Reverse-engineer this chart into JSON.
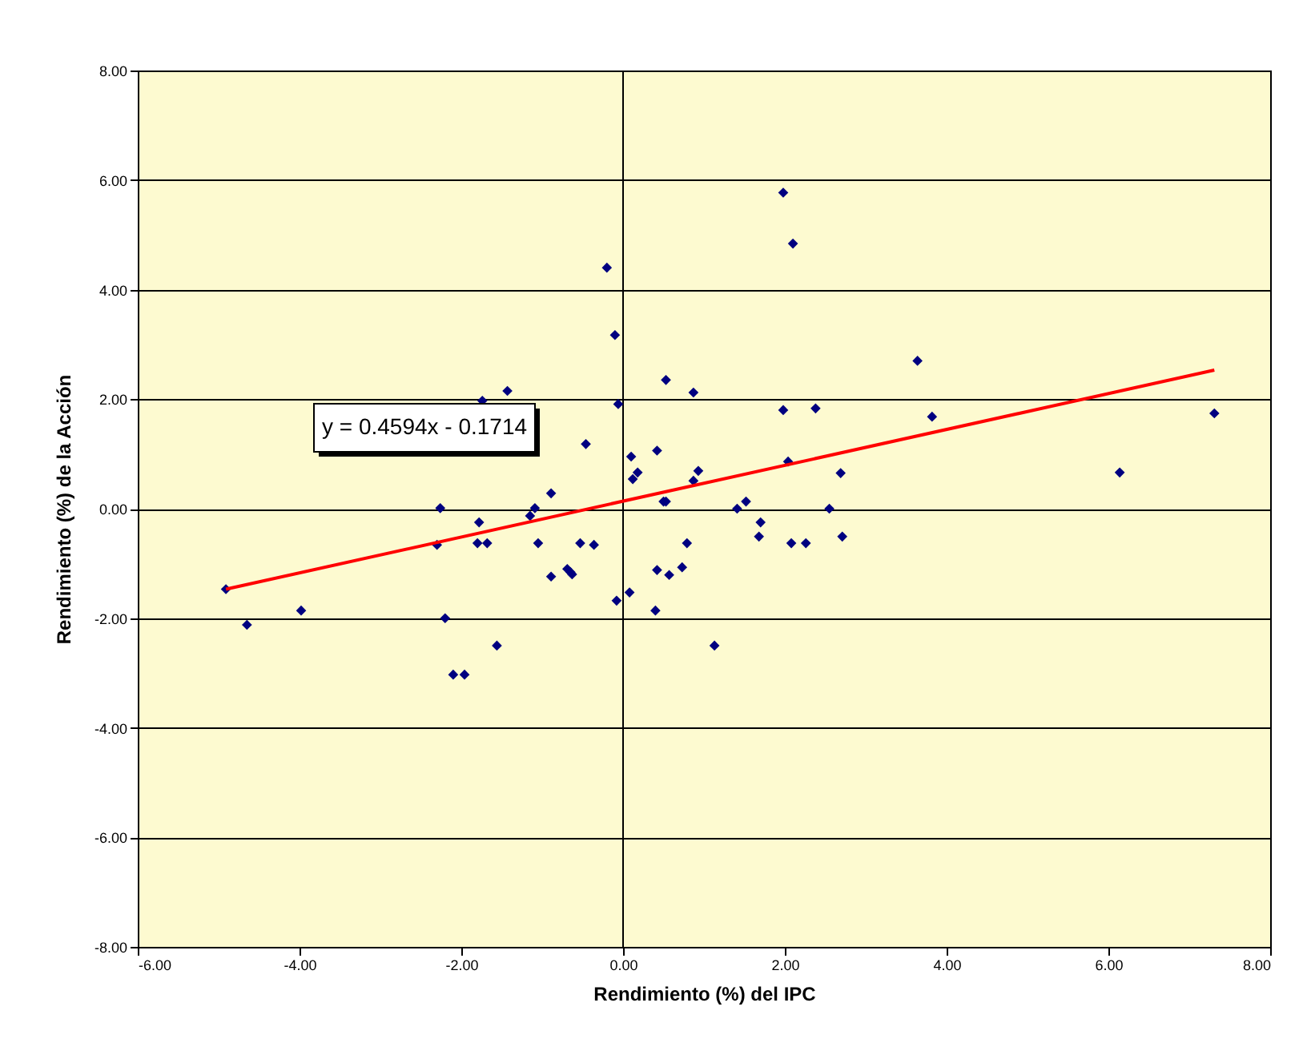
{
  "chart_data": {
    "type": "scatter",
    "xlabel": "Rendimiento (%) del IPC",
    "ylabel": "Rendimiento (%) de la Acción",
    "marker": "diamond",
    "grid": "y",
    "xlim": [
      -6,
      8
    ],
    "ylim": [
      -8,
      8
    ],
    "xticks": [
      {
        "value": -6,
        "label": "-6.00"
      },
      {
        "value": -4,
        "label": "-4.00"
      },
      {
        "value": -2,
        "label": "-2.00"
      },
      {
        "value": 0,
        "label": "0.00"
      },
      {
        "value": 2,
        "label": "2.00"
      },
      {
        "value": 4,
        "label": "4.00"
      },
      {
        "value": 6,
        "label": "6.00"
      },
      {
        "value": 8,
        "label": "8.00"
      }
    ],
    "yticks": [
      {
        "value": -8,
        "label": "-8.00"
      },
      {
        "value": -6,
        "label": "-6.00"
      },
      {
        "value": -4,
        "label": "-4.00"
      },
      {
        "value": -2,
        "label": "-2.00"
      },
      {
        "value": 0,
        "label": "0.00"
      },
      {
        "value": 2,
        "label": "2.00"
      },
      {
        "value": 4,
        "label": "4.00"
      },
      {
        "value": 6,
        "label": "6.00"
      },
      {
        "value": 8,
        "label": "8.00"
      }
    ],
    "ref_lines": [
      {
        "axis": "x",
        "value": 0,
        "label": null,
        "color": "#000000"
      }
    ],
    "annotations": [
      "y = 0.4594x - 0.1714"
    ],
    "series": [
      {
        "color": "#000080",
        "x": [
          -4.91,
          -4.65,
          -3.98,
          -2.26,
          -2.3,
          -2.2,
          -2.1,
          -1.96,
          -1.78,
          -1.8,
          -1.68,
          -1.74,
          -1.43,
          -1.56,
          -1.15,
          -1.09,
          -0.89,
          -1.05,
          -0.89,
          -0.69,
          -0.65,
          -0.63,
          -0.53,
          -0.36,
          -0.46,
          -0.2,
          -0.1,
          -0.06,
          -0.08,
          0.08,
          0.1,
          0.12,
          0.18,
          0.42,
          0.5,
          0.53,
          0.53,
          0.87,
          0.87,
          0.93,
          0.79,
          0.4,
          0.42,
          0.57,
          0.73,
          1.13,
          1.41,
          1.52,
          1.7,
          1.68,
          1.98,
          2.1,
          2.04,
          2.08,
          2.26,
          2.38,
          2.55,
          2.69,
          2.71,
          3.64,
          3.82,
          6.14,
          7.31
        ],
        "values": [
          -1.47,
          -2.12,
          -1.86,
          0.01,
          -0.66,
          -2.0,
          -3.03,
          -3.03,
          -0.25,
          -0.63,
          -0.63,
          1.97,
          2.15,
          -2.5,
          -0.13,
          0.01,
          0.28,
          -0.63,
          -1.24,
          -1.1,
          -1.16,
          -1.2,
          -0.63,
          -0.66,
          1.18,
          4.4,
          3.17,
          1.91,
          -1.68,
          -1.53,
          0.95,
          0.54,
          0.66,
          1.06,
          0.13,
          0.13,
          2.35,
          2.12,
          0.51,
          0.69,
          -0.63,
          -1.86,
          -1.12,
          -1.21,
          -1.07,
          -2.5,
          0.0,
          0.13,
          -0.25,
          -0.51,
          1.8,
          4.84,
          0.86,
          -0.63,
          -0.63,
          1.83,
          0.0,
          0.65,
          -0.51,
          2.7,
          1.68,
          0.66,
          1.74
        ]
      },
      {
        "type": "line",
        "marker": "none",
        "color": "#ff0000",
        "x": [
          -4.91,
          7.31
        ],
        "values": [
          -1.47,
          2.53
        ]
      },
      {
        "color": "#000080",
        "x": [
          1.98
        ],
        "values": [
          5.77
        ]
      }
    ]
  }
}
